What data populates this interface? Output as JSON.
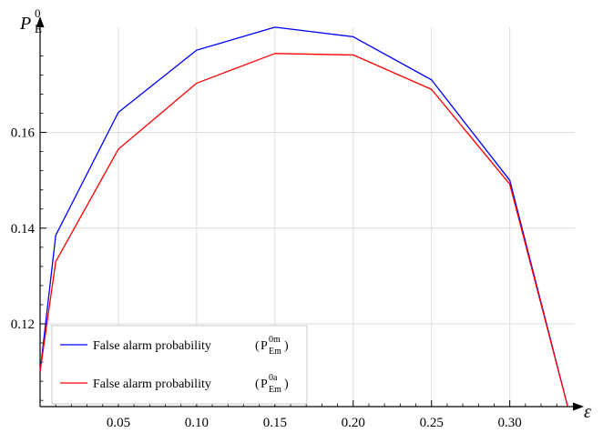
{
  "chart_data": {
    "type": "line",
    "x": [
      0,
      0.01,
      0.05,
      0.1,
      0.15,
      0.2,
      0.25,
      0.3,
      0.337
    ],
    "series": [
      {
        "name": "False alarm probability (P_Em^0m)",
        "color": "#0000ff",
        "values": [
          0.11,
          0.1385,
          0.1642,
          0.1772,
          0.182,
          0.18,
          0.171,
          0.15,
          0.1027
        ]
      },
      {
        "name": "False alarm probability (P_Em^0a)",
        "color": "#ff0000",
        "values": [
          0.11,
          0.133,
          0.1565,
          0.1703,
          0.1765,
          0.1762,
          0.169,
          0.1492,
          0.1027
        ]
      }
    ],
    "xlim": [
      0,
      0.345
    ],
    "ylim": [
      0.1027,
      0.1835
    ],
    "xticks": [
      "0.05",
      "0.10",
      "0.15",
      "0.20",
      "0.25",
      "0.30"
    ],
    "yticks": [
      "0.12",
      "0.14",
      "0.16"
    ],
    "xlabel": "ε",
    "ylabel": {
      "main": "P",
      "sub": "E",
      "sup": "0"
    },
    "grid": true,
    "legend": {
      "position": "bottom-left",
      "entries": [
        {
          "prefix": "False alarm probability",
          "base": "P",
          "sup": "0m",
          "sub": "Em"
        },
        {
          "prefix": "False alarm probability",
          "base": "P",
          "sup": "0a",
          "sub": "Em"
        }
      ]
    }
  }
}
